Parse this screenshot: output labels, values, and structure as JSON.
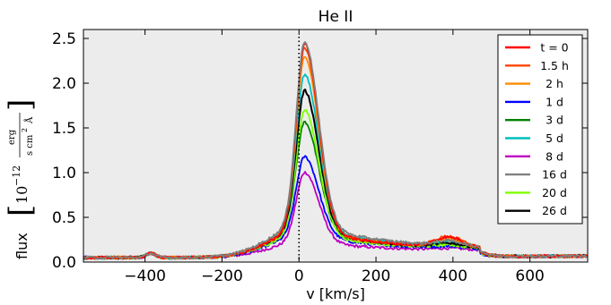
{
  "chart_data": {
    "type": "line",
    "title": "He II",
    "xlabel": "v [km/s]",
    "ylabel": "flux",
    "ylabel_units": {
      "exponent_base": "10",
      "exponent": "−12",
      "numerator": "erg",
      "denominator": "s  cm",
      "denominator_power": "2",
      "denominator_unit": "Å"
    },
    "xlim": [
      -560,
      750
    ],
    "ylim": [
      0,
      2.6
    ],
    "x_ticks": [
      -400,
      -200,
      0,
      200,
      400,
      600
    ],
    "x_tick_labels": [
      "−400",
      "−200",
      "0",
      "200",
      "400",
      "600"
    ],
    "y_ticks": [
      0,
      0.5,
      1.0,
      1.5,
      2.0,
      2.5
    ],
    "y_tick_labels": [
      "0.0",
      "0.5",
      "1.0",
      "1.5",
      "2.0",
      "2.5"
    ],
    "grid": false,
    "background": "#ececec",
    "legend_position": "right",
    "reference_line": {
      "x": 0,
      "style": "dotted",
      "color": "#000000"
    },
    "series": [
      {
        "name": "t = 0",
        "color": "#ff0000",
        "peak": 2.45,
        "wing": 0.3,
        "bump": 0.2
      },
      {
        "name": "1.5 h",
        "color": "#ff4500",
        "peak": 2.4,
        "wing": 0.31,
        "bump": 0.21
      },
      {
        "name": "2 h",
        "color": "#ff8c00",
        "peak": 2.3,
        "wing": 0.3,
        "bump": 0.17
      },
      {
        "name": "1 d",
        "color": "#0000ff",
        "peak": 1.18,
        "wing": 0.24,
        "bump": 0.04
      },
      {
        "name": "3 d",
        "color": "#008000",
        "peak": 1.57,
        "wing": 0.29,
        "bump": 0.08
      },
      {
        "name": "5 d",
        "color": "#00bfbf",
        "peak": 2.1,
        "wing": 0.33,
        "bump": 0.12
      },
      {
        "name": "8 d",
        "color": "#bf00bf",
        "peak": 1.0,
        "wing": 0.17,
        "bump": 0.03
      },
      {
        "name": "16 d",
        "color": "#808080",
        "peak": 2.47,
        "wing": 0.36,
        "bump": 0.1
      },
      {
        "name": "20 d",
        "color": "#7fff00",
        "peak": 1.7,
        "wing": 0.26,
        "bump": 0.06
      },
      {
        "name": "26 d",
        "color": "#000000",
        "peak": 1.92,
        "wing": 0.3,
        "bump": 0.08
      }
    ]
  }
}
